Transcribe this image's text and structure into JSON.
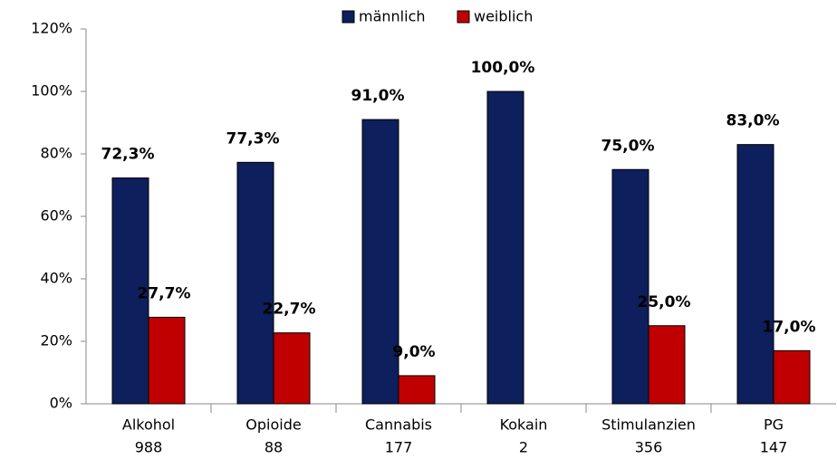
{
  "chart_data": {
    "type": "bar",
    "categories": [
      [
        "Alkohol",
        "988"
      ],
      [
        "Opioide",
        "88"
      ],
      [
        "Cannabis",
        "177"
      ],
      [
        "Kokain",
        "2"
      ],
      [
        "Stimulanzien",
        "356"
      ],
      [
        "PG",
        "147"
      ]
    ],
    "series": [
      {
        "name": "männlich",
        "color": "#0d1f5c",
        "values": [
          72.3,
          77.3,
          91.0,
          100.0,
          75.0,
          83.0
        ],
        "value_labels": [
          "72,3%",
          "77,3%",
          "91,0%",
          "100,0%",
          "75,0%",
          "83,0%"
        ]
      },
      {
        "name": "weiblich",
        "color": "#c00000",
        "values": [
          27.7,
          22.7,
          9.0,
          null,
          25.0,
          17.0
        ],
        "value_labels": [
          "27,7%",
          "22,7%",
          "9,0%",
          null,
          "25,0%",
          "17,0%"
        ]
      }
    ],
    "ylim": [
      0,
      120
    ],
    "yticks": [
      {
        "value": 0,
        "label": "0%"
      },
      {
        "value": 20,
        "label": "20%"
      },
      {
        "value": 40,
        "label": "40%"
      },
      {
        "value": 60,
        "label": "60%"
      },
      {
        "value": 80,
        "label": "80%"
      },
      {
        "value": 100,
        "label": "100%"
      },
      {
        "value": 120,
        "label": "120%"
      }
    ],
    "grid": false,
    "legend": "top"
  }
}
